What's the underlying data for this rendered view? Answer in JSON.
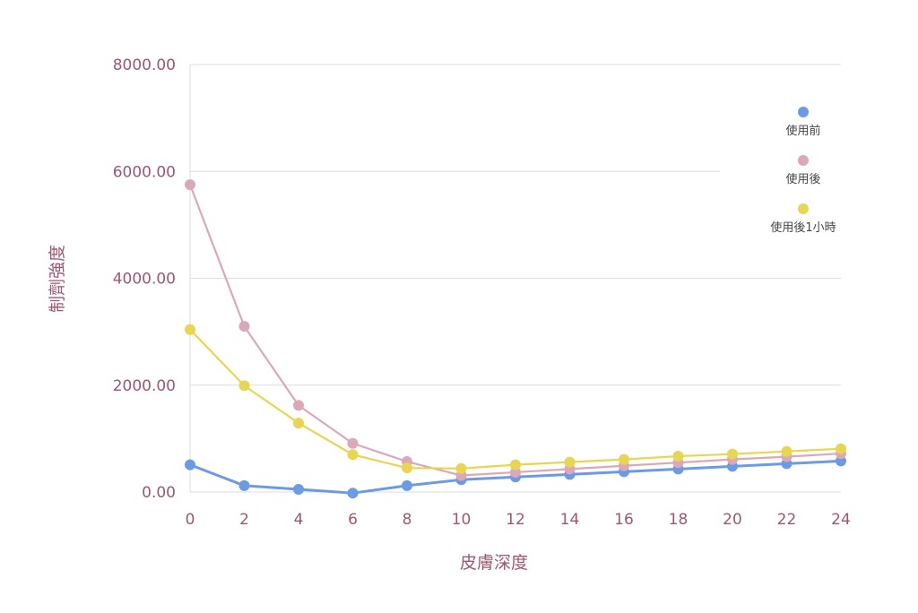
{
  "chart_data": {
    "type": "line",
    "title": "",
    "xlabel": "皮膚深度",
    "ylabel": "制劑強度",
    "x": [
      0,
      2,
      4,
      6,
      8,
      10,
      12,
      14,
      16,
      18,
      20,
      22,
      24
    ],
    "x_tick_labels": [
      "0",
      "2",
      "4",
      "6",
      "8",
      "10",
      "12",
      "14",
      "16",
      "18",
      "20",
      "22",
      "24"
    ],
    "y_tick_labels": [
      "0.00",
      "2000.00",
      "4000.00",
      "6000.00",
      "8000.00"
    ],
    "ylim": [
      0,
      8000
    ],
    "grid": true,
    "legend_position": "right",
    "series": [
      {
        "name": "使用前",
        "color": "#6b9be6",
        "values": [
          510,
          120,
          50,
          -20,
          120,
          230,
          280,
          330,
          380,
          430,
          480,
          530,
          580
        ]
      },
      {
        "name": "使用後",
        "color": "#dba8ba",
        "values": [
          5750,
          3100,
          1620,
          910,
          570,
          310,
          370,
          430,
          490,
          550,
          610,
          660,
          720
        ]
      },
      {
        "name": "使用後1小時",
        "color": "#e8d651",
        "values": [
          3040,
          1990,
          1290,
          700,
          450,
          440,
          510,
          560,
          610,
          670,
          710,
          760,
          810
        ]
      }
    ],
    "axis_text_color": "#9e5672",
    "gridline_color": "#dddddd"
  }
}
